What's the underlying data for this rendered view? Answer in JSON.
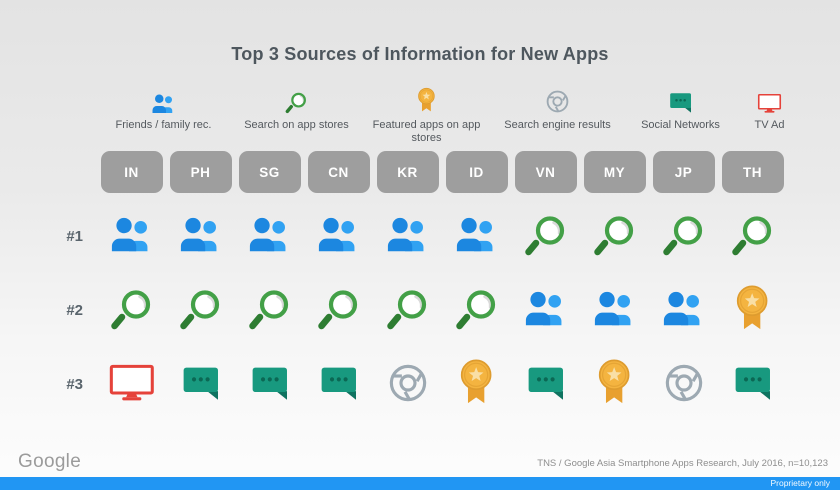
{
  "title": "Top 3 Sources of Information for New Apps",
  "legend": [
    {
      "id": "friends",
      "label": "Friends / family rec."
    },
    {
      "id": "search_store",
      "label": "Search on app stores"
    },
    {
      "id": "featured",
      "label": "Featured apps on app stores"
    },
    {
      "id": "search_engine",
      "label": "Search engine results"
    },
    {
      "id": "social",
      "label": "Social Networks"
    },
    {
      "id": "tv",
      "label": "TV Ad"
    }
  ],
  "chart_data": {
    "type": "table",
    "title": "Top 3 Sources of Information for New Apps",
    "columns": [
      "IN",
      "PH",
      "SG",
      "CN",
      "KR",
      "ID",
      "VN",
      "MY",
      "JP",
      "TH"
    ],
    "rows": [
      {
        "rank": "#1",
        "values": [
          "friends",
          "friends",
          "friends",
          "friends",
          "friends",
          "friends",
          "search_store",
          "search_store",
          "search_store",
          "search_store"
        ]
      },
      {
        "rank": "#2",
        "values": [
          "search_store",
          "search_store",
          "search_store",
          "search_store",
          "search_store",
          "search_store",
          "friends",
          "friends",
          "friends",
          "featured"
        ]
      },
      {
        "rank": "#3",
        "values": [
          "tv",
          "social",
          "social",
          "social",
          "search_engine",
          "featured",
          "social",
          "featured",
          "search_engine",
          "social"
        ]
      }
    ],
    "legend_position": "top",
    "value_domain": [
      "friends",
      "search_store",
      "featured",
      "search_engine",
      "social",
      "tv"
    ]
  },
  "footer": {
    "logo": "Google",
    "source": "TNS / Google Asia Smartphone Apps Research, July 2016, n=10,123",
    "proprietary": "Proprietary only"
  },
  "colors": {
    "person_front": "#1C87E0",
    "person_back": "#31A2F2",
    "magnifier_ring": "#43A047",
    "magnifier_handle": "#2E7D32",
    "medal_gold": "#F4B440",
    "medal_dark": "#DE9C2F",
    "medal_ribbon": "#E8A02F",
    "medal_star": "#F9DFA5",
    "chrome_gray": "#9DA9B2",
    "bubble_teal": "#18997F",
    "bubble_dark": "#0F7360",
    "bubble_dots": "#0B6854",
    "tv_red": "#E5423A",
    "pill_gray": "#9E9E9E",
    "footer_bar_blue": "#2196F3",
    "title_text": "#4E575E"
  }
}
